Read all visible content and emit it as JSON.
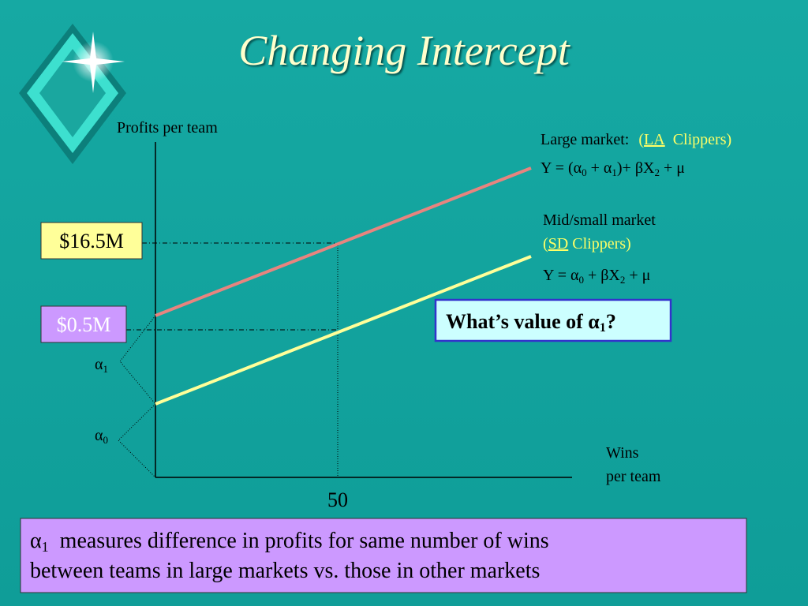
{
  "title": "Changing Intercept",
  "axes": {
    "y_label": "Profits per team",
    "x_label": [
      "Wins",
      "per team"
    ],
    "x_tick": "50"
  },
  "value_boxes": [
    "$16.5M",
    "$0.5M"
  ],
  "brace_labels": [
    {
      "symbol": "α",
      "sub": "1"
    },
    {
      "symbol": "α",
      "sub": "0"
    }
  ],
  "large_market": {
    "label": "Large market:",
    "team": [
      "(",
      "LA",
      "Clippers)"
    ],
    "equation": [
      "Y = (α",
      "0",
      " + α",
      "1",
      ")+ βX",
      "2",
      " + μ"
    ]
  },
  "mid_small_market": {
    "label": "Mid/small market",
    "team": [
      "(",
      "SD",
      " Clippers)"
    ],
    "equation": [
      "Y = α",
      "0",
      " + βX",
      "2",
      " + μ"
    ]
  },
  "question": [
    "What’s value of α",
    "1",
    "?"
  ],
  "note": {
    "symbol": "α",
    "sub": "1",
    "lines": [
      "measures difference in profits for same number of wins",
      "between teams in large markets vs. those in other markets"
    ]
  }
}
